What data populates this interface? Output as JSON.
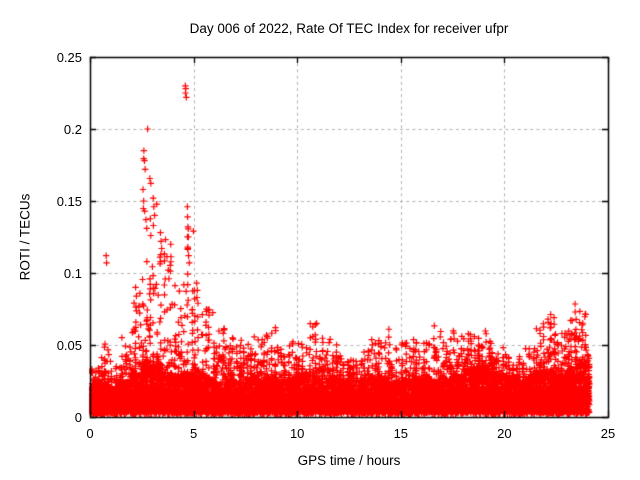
{
  "window": {
    "background": "#ffffff"
  },
  "chart_data": {
    "type": "scatter",
    "title": "Day 006 of 2022, Rate Of TEC Index for receiver ufpr",
    "xlabel": "GPS time / hours",
    "ylabel": "ROTI / TECUs",
    "xlim": [
      0,
      25
    ],
    "ylim": [
      0,
      0.25
    ],
    "xticks": [
      0,
      5,
      10,
      15,
      20,
      25
    ],
    "xtick_labels": [
      "0",
      "5",
      "10",
      "15",
      "20",
      "25"
    ],
    "yticks": [
      0,
      0.05,
      0.1,
      0.15,
      0.2,
      0.25
    ],
    "ytick_labels": [
      "0",
      "0.05",
      "0.1",
      "0.15",
      "0.2",
      "0.25"
    ],
    "grid": true,
    "legend": "none",
    "marker": "plus",
    "colors": {
      "points": "#ff0000",
      "grid": "#b3b3b3",
      "axis": "#000000",
      "text": "#000000"
    },
    "data_start_hour": 0.0,
    "data_end_hour": 24.1,
    "dense_band": {
      "description": "Envelope of the dense red scatter mass, read off the plot. Each bin: [bin_start_hour, dense_mass_top_TECU, sparse_tail_max_TECU]. Bin width 0.5 h; dense floor ~0.002 TECU.",
      "bin_width_hours": 0.5,
      "band_floor": 0.002,
      "bins": [
        [
          0.0,
          0.02,
          0.034
        ],
        [
          0.5,
          0.022,
          0.056
        ],
        [
          1.0,
          0.018,
          0.036
        ],
        [
          1.5,
          0.024,
          0.06
        ],
        [
          2.0,
          0.03,
          0.092
        ],
        [
          2.5,
          0.038,
          0.185
        ],
        [
          3.0,
          0.036,
          0.152
        ],
        [
          3.5,
          0.03,
          0.128
        ],
        [
          4.0,
          0.028,
          0.096
        ],
        [
          4.5,
          0.03,
          0.146
        ],
        [
          5.0,
          0.028,
          0.094
        ],
        [
          5.5,
          0.026,
          0.076
        ],
        [
          6.0,
          0.024,
          0.068
        ],
        [
          6.5,
          0.026,
          0.06
        ],
        [
          7.0,
          0.024,
          0.054
        ],
        [
          7.5,
          0.026,
          0.06
        ],
        [
          8.0,
          0.024,
          0.056
        ],
        [
          8.5,
          0.026,
          0.063
        ],
        [
          9.0,
          0.024,
          0.05
        ],
        [
          9.5,
          0.026,
          0.058
        ],
        [
          10.0,
          0.028,
          0.052
        ],
        [
          10.5,
          0.028,
          0.066
        ],
        [
          11.0,
          0.026,
          0.056
        ],
        [
          11.5,
          0.026,
          0.058
        ],
        [
          12.0,
          0.024,
          0.048
        ],
        [
          12.5,
          0.022,
          0.044
        ],
        [
          13.0,
          0.024,
          0.048
        ],
        [
          13.5,
          0.026,
          0.056
        ],
        [
          14.0,
          0.024,
          0.062
        ],
        [
          14.5,
          0.022,
          0.048
        ],
        [
          15.0,
          0.024,
          0.056
        ],
        [
          15.5,
          0.026,
          0.058
        ],
        [
          16.0,
          0.026,
          0.052
        ],
        [
          16.5,
          0.024,
          0.066
        ],
        [
          17.0,
          0.026,
          0.056
        ],
        [
          17.5,
          0.028,
          0.06
        ],
        [
          18.0,
          0.032,
          0.058
        ],
        [
          18.5,
          0.034,
          0.056
        ],
        [
          19.0,
          0.032,
          0.06
        ],
        [
          19.5,
          0.028,
          0.052
        ],
        [
          20.0,
          0.026,
          0.046
        ],
        [
          20.5,
          0.024,
          0.042
        ],
        [
          21.0,
          0.026,
          0.048
        ],
        [
          21.5,
          0.03,
          0.065
        ],
        [
          22.0,
          0.032,
          0.073
        ],
        [
          22.5,
          0.028,
          0.058
        ],
        [
          23.0,
          0.034,
          0.079
        ],
        [
          23.5,
          0.036,
          0.075
        ]
      ],
      "end_cluster": [
        24.0,
        0.028,
        0.048
      ]
    },
    "outlier_points": [
      [
        0.78,
        0.112
      ],
      [
        0.8,
        0.107
      ],
      [
        2.78,
        0.2
      ],
      [
        2.6,
        0.185
      ],
      [
        2.63,
        0.178
      ],
      [
        2.66,
        0.172
      ],
      [
        2.56,
        0.158
      ],
      [
        2.59,
        0.15
      ],
      [
        2.64,
        0.143
      ],
      [
        2.7,
        0.137
      ],
      [
        2.74,
        0.131
      ],
      [
        3.05,
        0.152
      ],
      [
        3.08,
        0.146
      ],
      [
        3.12,
        0.14
      ],
      [
        3.06,
        0.133
      ],
      [
        3.4,
        0.128
      ],
      [
        3.43,
        0.122
      ],
      [
        3.46,
        0.117
      ],
      [
        3.38,
        0.111
      ],
      [
        4.6,
        0.23
      ],
      [
        4.62,
        0.228
      ],
      [
        4.61,
        0.225
      ],
      [
        4.65,
        0.222
      ],
      [
        4.7,
        0.146
      ],
      [
        4.71,
        0.139
      ],
      [
        4.73,
        0.132
      ],
      [
        4.75,
        0.125
      ],
      [
        4.72,
        0.118
      ],
      [
        4.76,
        0.112
      ],
      [
        4.79,
        0.107
      ],
      [
        5.15,
        0.093
      ],
      [
        5.18,
        0.088
      ],
      [
        5.16,
        0.083
      ],
      [
        5.21,
        0.079
      ],
      [
        2.2,
        0.09
      ],
      [
        2.24,
        0.084
      ],
      [
        3.78,
        0.102
      ],
      [
        3.81,
        0.096
      ]
    ]
  }
}
